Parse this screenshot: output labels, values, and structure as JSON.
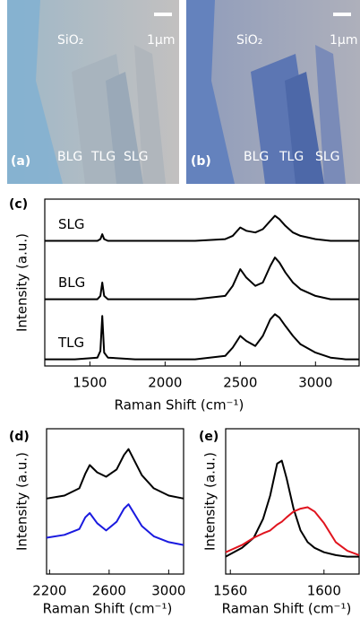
{
  "images": [
    {
      "label": "(a)",
      "substrate": "SiO₂",
      "scale_bar": "1µm",
      "regions": [
        "BLG",
        "TLG",
        "SLG"
      ]
    },
    {
      "label": "(b)",
      "substrate": "SiO₂",
      "scale_bar": "1µm",
      "regions": [
        "BLG",
        "TLG",
        "SLG"
      ]
    }
  ],
  "chart_data": [
    {
      "type": "line",
      "panel": "(c)",
      "x_label": "Raman Shift (cm⁻¹)",
      "y_label": "Intensity (a.u.)",
      "x": [
        1200,
        1400,
        1550,
        1570,
        1582,
        1595,
        1620,
        1800,
        2000,
        2200,
        2400,
        2450,
        2500,
        2540,
        2600,
        2650,
        2700,
        2730,
        2760,
        2800,
        2850,
        2900,
        3000,
        3100,
        3200,
        3290
      ],
      "series": [
        {
          "name": "SLG",
          "color": "#000000",
          "values": [
            7.5,
            7.5,
            7.5,
            7.6,
            7.9,
            7.6,
            7.5,
            7.5,
            7.5,
            7.5,
            7.6,
            7.8,
            8.3,
            8.1,
            8.0,
            8.2,
            8.7,
            9.0,
            8.8,
            8.4,
            8.0,
            7.8,
            7.6,
            7.5,
            7.5,
            7.5
          ]
        },
        {
          "name": "BLG",
          "color": "#000000",
          "values": [
            4.0,
            4.0,
            4.0,
            4.2,
            5.0,
            4.2,
            4.0,
            4.0,
            4.0,
            4.0,
            4.2,
            4.8,
            5.8,
            5.3,
            4.8,
            5.0,
            6.0,
            6.5,
            6.2,
            5.6,
            5.0,
            4.6,
            4.2,
            4.0,
            4.0,
            4.0
          ]
        },
        {
          "name": "TLG",
          "color": "#000000",
          "values": [
            0.4,
            0.4,
            0.5,
            0.9,
            3.0,
            0.8,
            0.5,
            0.4,
            0.4,
            0.4,
            0.6,
            1.1,
            1.8,
            1.5,
            1.2,
            1.8,
            2.8,
            3.1,
            2.9,
            2.4,
            1.8,
            1.3,
            0.8,
            0.5,
            0.4,
            0.4
          ]
        }
      ],
      "xlim": [
        1200,
        3290
      ],
      "xticks": [
        1500,
        2000,
        2500,
        3000
      ],
      "ylim": [
        0,
        10
      ]
    },
    {
      "type": "line",
      "panel": "(d)",
      "x_label": "Raman Shift (cm⁻¹)",
      "y_label": "Intensity (a.u.)",
      "x": [
        2180,
        2300,
        2400,
        2440,
        2470,
        2520,
        2580,
        2650,
        2700,
        2730,
        2760,
        2820,
        2900,
        3000,
        3100
      ],
      "series": [
        {
          "color": "#000000",
          "values": [
            5.2,
            5.4,
            5.9,
            6.9,
            7.5,
            7.0,
            6.7,
            7.2,
            8.2,
            8.6,
            8.0,
            6.8,
            5.9,
            5.4,
            5.2
          ]
        },
        {
          "color": "#1a1adf",
          "values": [
            2.5,
            2.7,
            3.1,
            3.9,
            4.2,
            3.5,
            3.0,
            3.6,
            4.5,
            4.8,
            4.3,
            3.3,
            2.6,
            2.2,
            2.0
          ]
        }
      ],
      "xlim": [
        2180,
        3100
      ],
      "xticks": [
        2200,
        2600,
        3000
      ],
      "ylim": [
        0,
        10
      ]
    },
    {
      "type": "line",
      "panel": "(e)",
      "x_label": "Raman Shift (cm⁻¹)",
      "y_label": "Intensity (a.u.)",
      "x": [
        1558,
        1565,
        1570,
        1574,
        1577,
        1580,
        1582,
        1584,
        1587,
        1590,
        1593,
        1596,
        1600,
        1605,
        1610,
        1615
      ],
      "series": [
        {
          "color": "#000000",
          "values": [
            1.2,
            1.8,
            2.5,
            3.8,
            5.4,
            7.6,
            7.8,
            6.6,
            4.5,
            3.0,
            2.2,
            1.8,
            1.5,
            1.3,
            1.2,
            1.2
          ]
        },
        {
          "color": "#e0141e",
          "values": [
            1.5,
            2.0,
            2.5,
            2.8,
            3.0,
            3.4,
            3.6,
            3.9,
            4.3,
            4.5,
            4.6,
            4.3,
            3.5,
            2.2,
            1.6,
            1.3
          ]
        }
      ],
      "xlim": [
        1558,
        1615
      ],
      "xticks": [
        1560,
        1600
      ],
      "ylim": [
        0,
        10
      ]
    }
  ]
}
